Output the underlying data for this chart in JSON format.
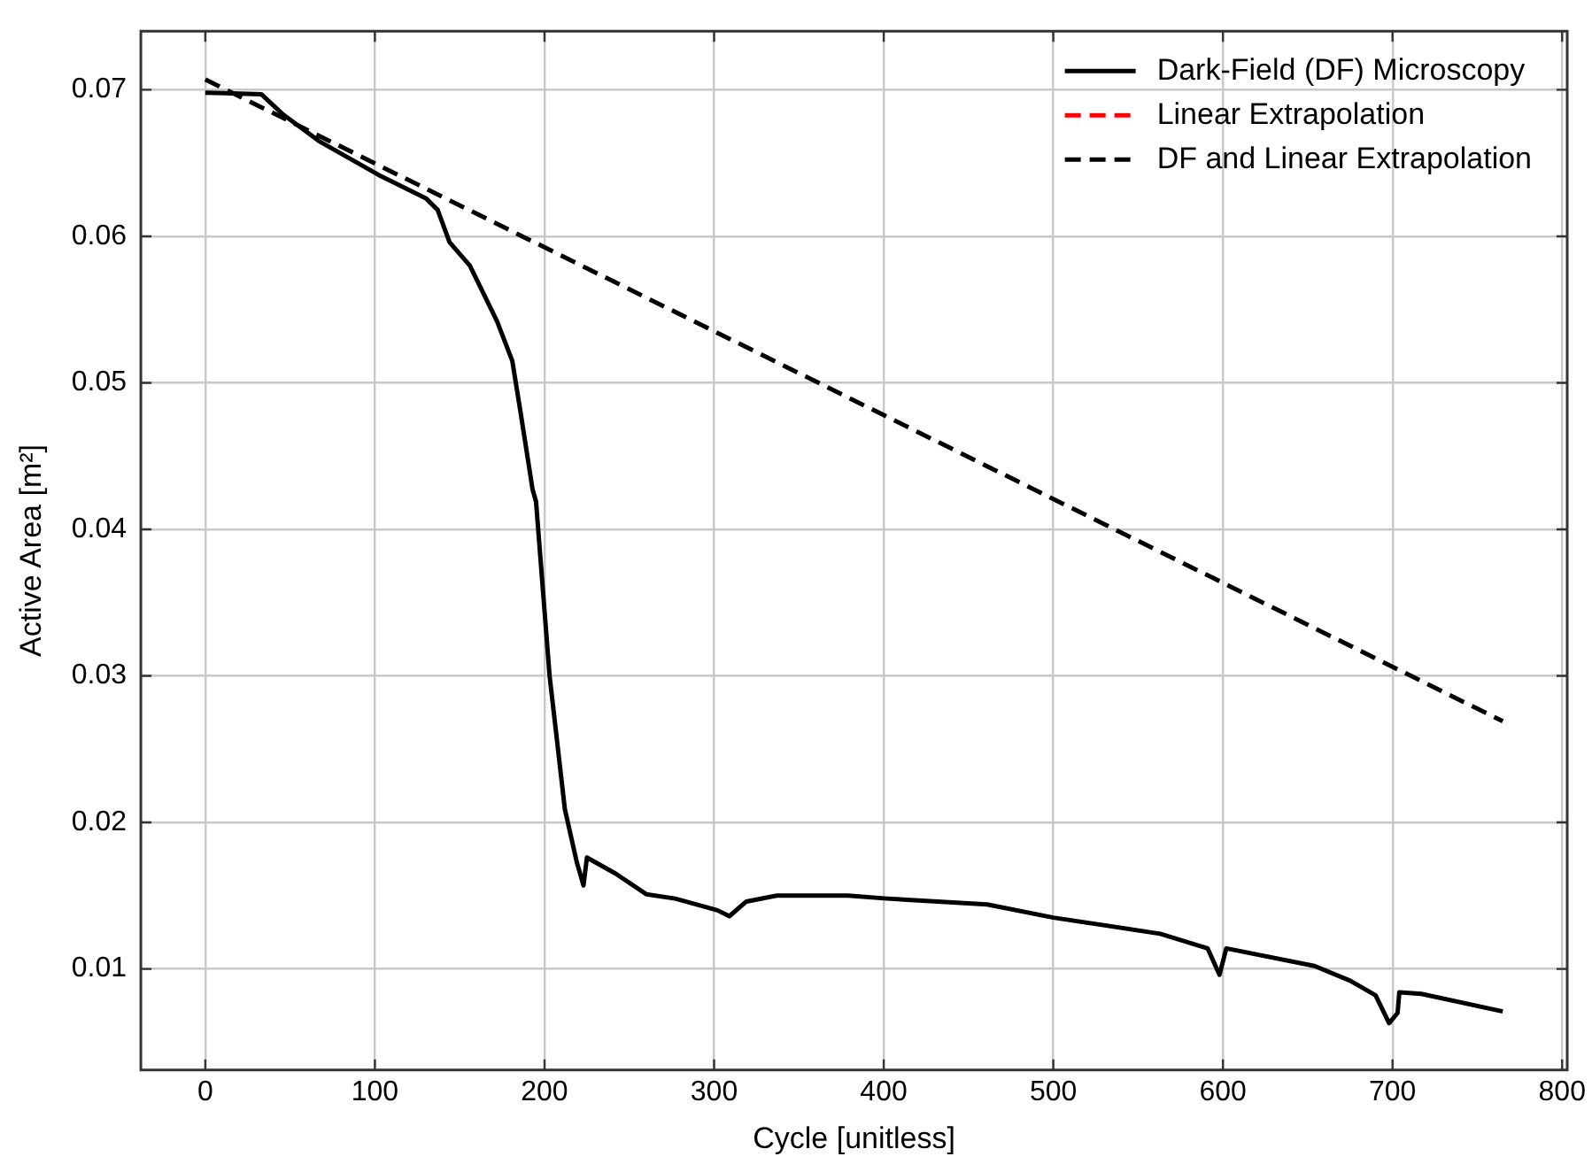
{
  "chart_data": {
    "type": "line",
    "xlabel": "Cycle [unitless]",
    "ylabel": "Active Area [m²]",
    "xlim": [
      -38,
      803
    ],
    "xticks": [
      0,
      100,
      200,
      300,
      400,
      500,
      600,
      700,
      800
    ],
    "ylim": [
      0.0031,
      0.074
    ],
    "yticks": [
      0.01,
      0.02,
      0.03,
      0.04,
      0.05,
      0.06,
      0.07
    ],
    "grid": true,
    "legend": "top right",
    "series": [
      {
        "name": "Dark-Field (DF) Microscopy",
        "color": "#000000",
        "line_style": "solid",
        "x": [
          0,
          33,
          46,
          67,
          102,
          130,
          137,
          144,
          156,
          172,
          181,
          186,
          193,
          195,
          203,
          212,
          219,
          223,
          225,
          242,
          260,
          277,
          302,
          309,
          319,
          337,
          367,
          379,
          402,
          461,
          500,
          563,
          591,
          598,
          602,
          654,
          675,
          690,
          698,
          703,
          704,
          717,
          765
        ],
        "values": [
          0.0698,
          0.0697,
          0.0683,
          0.0665,
          0.0642,
          0.0626,
          0.0618,
          0.0596,
          0.058,
          0.0542,
          0.0515,
          0.0479,
          0.0427,
          0.0419,
          0.03,
          0.0209,
          0.0173,
          0.0157,
          0.0176,
          0.0165,
          0.0151,
          0.0148,
          0.014,
          0.0136,
          0.0146,
          0.015,
          0.015,
          0.015,
          0.0148,
          0.0144,
          0.0135,
          0.0124,
          0.0114,
          0.0096,
          0.0114,
          0.0102,
          0.0092,
          0.0082,
          0.0063,
          0.007,
          0.0084,
          0.0083,
          0.0071
        ]
      },
      {
        "name": "Linear Extrapolation",
        "color": "#ff0000",
        "line_style": "dashed"
      },
      {
        "name": "DF and Linear Extrapolation",
        "color": "#000000",
        "line_style": "dashed",
        "x": [
          0,
          765
        ],
        "values": [
          0.0707,
          0.0269
        ]
      }
    ]
  }
}
